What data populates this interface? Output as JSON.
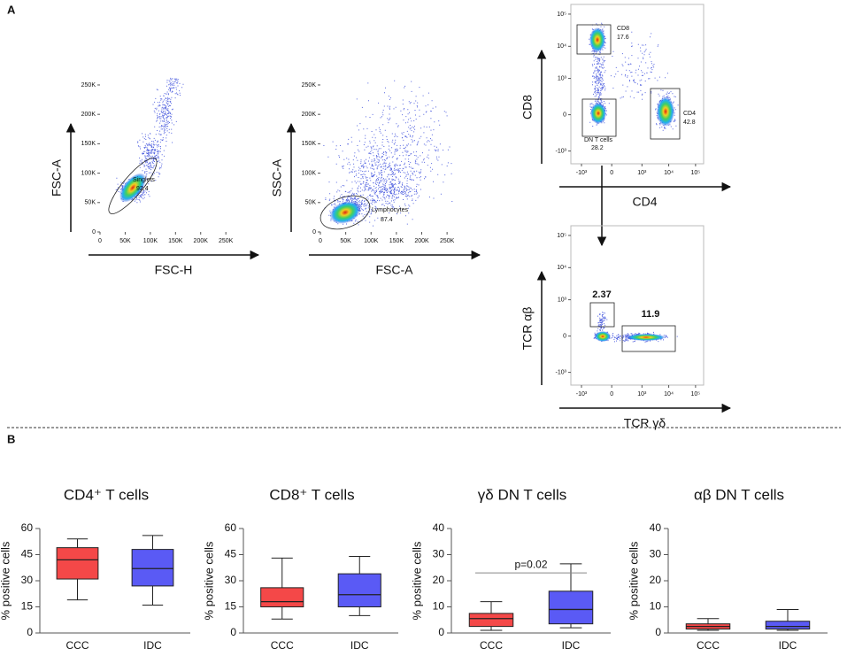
{
  "figure_labels": [
    "A",
    "B"
  ],
  "flow_plots": [
    {
      "x_label": "FSC-H",
      "y_label": "FSC-A",
      "xlim": [
        0,
        262000
      ],
      "ylim": [
        0,
        262000
      ],
      "xticks": [
        {
          "value": 0,
          "label": "0"
        },
        {
          "value": 50000,
          "label": "50K"
        },
        {
          "value": 100000,
          "label": "100K"
        },
        {
          "value": 150000,
          "label": "150K"
        },
        {
          "value": 200000,
          "label": "200K"
        },
        {
          "value": 250000,
          "label": "250K"
        }
      ],
      "yticks": [
        {
          "value": 0,
          "label": "0"
        },
        {
          "value": 50000,
          "label": "50K"
        },
        {
          "value": 100000,
          "label": "100K"
        },
        {
          "value": 150000,
          "label": "150K"
        },
        {
          "value": 200000,
          "label": "200K"
        },
        {
          "value": 250000,
          "label": "250K"
        }
      ],
      "gates": [
        {
          "label": "Singlets",
          "value": 92.4
        }
      ]
    },
    {
      "x_label": "FSC-A",
      "y_label": "SSC-A",
      "xlim": [
        0,
        262000
      ],
      "ylim": [
        0,
        262000
      ],
      "xticks": [
        {
          "value": 0,
          "label": "0"
        },
        {
          "value": 50000,
          "label": "50K"
        },
        {
          "value": 100000,
          "label": "100K"
        },
        {
          "value": 150000,
          "label": "150K"
        },
        {
          "value": 200000,
          "label": "200K"
        },
        {
          "value": 250000,
          "label": "250K"
        }
      ],
      "yticks": [
        {
          "value": 0,
          "label": "0"
        },
        {
          "value": 50000,
          "label": "50K"
        },
        {
          "value": 100000,
          "label": "100K"
        },
        {
          "value": 150000,
          "label": "150K"
        },
        {
          "value": 200000,
          "label": "200K"
        },
        {
          "value": 250000,
          "label": "250K"
        }
      ],
      "gates": [
        {
          "label": "Lymphocytes",
          "value": 87.4
        }
      ]
    },
    {
      "x_label": "CD4",
      "y_label": "CD8",
      "xlim": [
        -2500,
        200000
      ],
      "ylim": [
        -2500,
        200000
      ],
      "scale": "biexponential",
      "xticks": [
        {
          "value": -1000,
          "label": "-10³"
        },
        {
          "value": 0,
          "label": "0"
        },
        {
          "value": 1000,
          "label": "10³"
        },
        {
          "value": 10000,
          "label": "10⁴"
        },
        {
          "value": 100000,
          "label": "10⁵"
        }
      ],
      "yticks": [
        {
          "value": -1000,
          "label": "-10³"
        },
        {
          "value": 0,
          "label": "0"
        },
        {
          "value": 1000,
          "label": "10³"
        },
        {
          "value": 10000,
          "label": "10⁴"
        },
        {
          "value": 100000,
          "label": "10⁵"
        }
      ],
      "gates": [
        {
          "label": "CD8",
          "value": 17.6
        },
        {
          "label": "DN T cells",
          "value": 28.2
        },
        {
          "label": "CD4",
          "value": 42.8
        }
      ]
    },
    {
      "x_label": "TCR γδ",
      "y_label": "TCR αβ",
      "xlim": [
        -2500,
        200000
      ],
      "ylim": [
        -2500,
        200000
      ],
      "scale": "biexponential",
      "xticks": [
        {
          "value": -1000,
          "label": "-10³"
        },
        {
          "value": 0,
          "label": "0"
        },
        {
          "value": 1000,
          "label": "10³"
        },
        {
          "value": 10000,
          "label": "10⁴"
        },
        {
          "value": 100000,
          "label": "10⁵"
        }
      ],
      "yticks": [
        {
          "value": -1000,
          "label": "-10³"
        },
        {
          "value": 0,
          "label": "0"
        },
        {
          "value": 1000,
          "label": "10³"
        },
        {
          "value": 10000,
          "label": "10⁴"
        },
        {
          "value": 100000,
          "label": "10⁵"
        }
      ],
      "gates": [
        {
          "value": 2.37
        },
        {
          "value": 11.9
        }
      ]
    }
  ],
  "chart_data": [
    {
      "type": "box",
      "title": "CD4⁺ T cells",
      "y_label": "% positive cells",
      "categories": [
        "CCC",
        "IDC"
      ],
      "colors": [
        "#f44848",
        "#5a5af5"
      ],
      "values": [
        [
          19,
          31,
          42,
          49,
          54
        ],
        [
          16,
          27,
          37,
          48,
          56
        ]
      ],
      "ylim": [
        0,
        60
      ],
      "yticks": [
        0,
        15,
        30,
        45,
        60
      ]
    },
    {
      "type": "box",
      "title": "CD8⁺ T cells",
      "y_label": "% positive cells",
      "categories": [
        "CCC",
        "IDC"
      ],
      "colors": [
        "#f44848",
        "#5a5af5"
      ],
      "values": [
        [
          8,
          15,
          18,
          26,
          43
        ],
        [
          10,
          15,
          22,
          34,
          44
        ]
      ],
      "ylim": [
        0,
        60
      ],
      "yticks": [
        0,
        15,
        30,
        45,
        60
      ]
    },
    {
      "type": "box",
      "title": "γδ DN T cells",
      "y_label": "% positive cells",
      "categories": [
        "CCC",
        "IDC"
      ],
      "colors": [
        "#f44848",
        "#5a5af5"
      ],
      "values": [
        [
          1,
          2.5,
          5.5,
          7.5,
          12
        ],
        [
          2,
          3.5,
          9,
          16,
          26.5
        ]
      ],
      "ylim": [
        0,
        40
      ],
      "yticks": [
        0,
        10,
        20,
        30,
        40
      ],
      "annotation": {
        "text": "p=0.02",
        "value": 23
      }
    },
    {
      "type": "box",
      "title": "αβ DN T cells",
      "y_label": "% positive cells",
      "categories": [
        "CCC",
        "IDC"
      ],
      "colors": [
        "#f44848",
        "#5a5af5"
      ],
      "values": [
        [
          1,
          1.5,
          2.5,
          3.5,
          5.5
        ],
        [
          1,
          1.5,
          2.5,
          4.5,
          9
        ]
      ],
      "ylim": [
        0,
        40
      ],
      "yticks": [
        0,
        10,
        20,
        30,
        40
      ]
    }
  ]
}
